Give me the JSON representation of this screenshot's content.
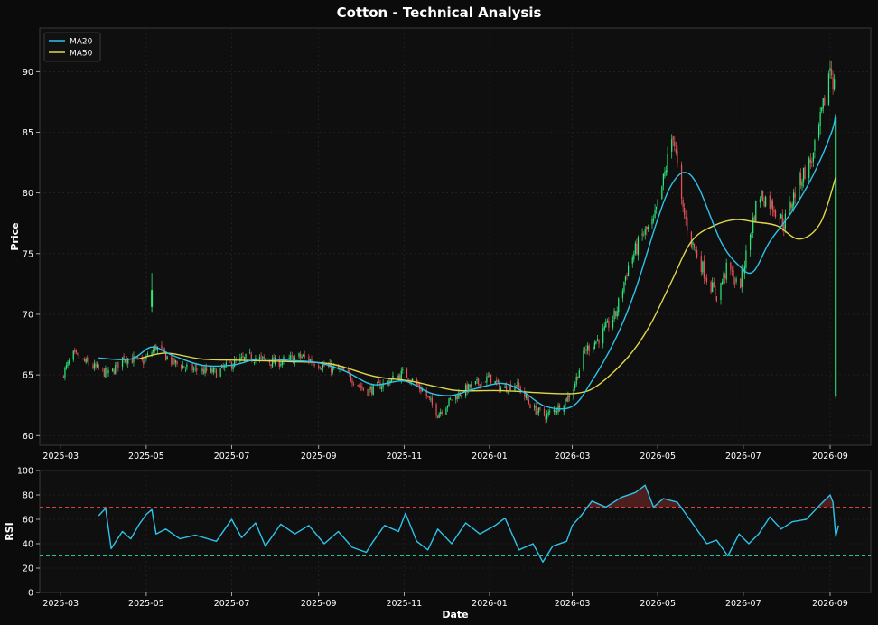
{
  "title": "Cotton - Technical Analysis",
  "colors": {
    "background": "#0b0b0b",
    "plot_bg": "#0f0f0f",
    "grid": "#2a2a2a",
    "up": "#2ee87a",
    "down": "#e8545a",
    "ma20": "#2ec3ea",
    "ma50": "#e0d84a",
    "rsi": "#2ec3ea",
    "overbought": "#d9433f",
    "oversold": "#26c2a0",
    "text": "#ffffff"
  },
  "chart_data": [
    {
      "type": "candlestick",
      "ylabel": "Price",
      "xlabel": "",
      "ylim": [
        59.2,
        93.6
      ],
      "yticks": [
        60,
        65,
        70,
        75,
        80,
        85,
        90
      ],
      "xlim": [
        "2025-02-14",
        "2026-09-30"
      ],
      "xticks": [
        "2025-03",
        "2025-05",
        "2025-07",
        "2025-09",
        "2025-11",
        "2026-01",
        "2026-03",
        "2026-05",
        "2026-07",
        "2026-09"
      ],
      "grid": true,
      "legend": {
        "position": "top-left",
        "entries": [
          "MA20",
          "MA50"
        ]
      },
      "close_anchors": [
        [
          "2025-03-01",
          64.8
        ],
        [
          "2025-03-10",
          66.6
        ],
        [
          "2025-03-25",
          65.6
        ],
        [
          "2025-04-05",
          65.0
        ],
        [
          "2025-04-15",
          66.5
        ],
        [
          "2025-04-28",
          66.0
        ],
        [
          "2025-05-08",
          67.3
        ],
        [
          "2025-05-20",
          66.0
        ],
        [
          "2025-06-05",
          65.4
        ],
        [
          "2025-06-20",
          65.2
        ],
        [
          "2025-07-01",
          65.9
        ],
        [
          "2025-07-15",
          66.5
        ],
        [
          "2025-08-01",
          66.0
        ],
        [
          "2025-08-20",
          66.5
        ],
        [
          "2025-09-05",
          65.7
        ],
        [
          "2025-09-20",
          65.2
        ],
        [
          "2025-10-05",
          63.6
        ],
        [
          "2025-10-20",
          64.4
        ],
        [
          "2025-11-01",
          65.2
        ],
        [
          "2025-11-15",
          63.6
        ],
        [
          "2025-11-25",
          61.8
        ],
        [
          "2025-12-05",
          63.0
        ],
        [
          "2025-12-15",
          63.8
        ],
        [
          "2026-01-01",
          64.8
        ],
        [
          "2026-01-10",
          63.8
        ],
        [
          "2026-01-20",
          64.3
        ],
        [
          "2026-02-01",
          62.2
        ],
        [
          "2026-02-10",
          61.6
        ],
        [
          "2026-02-20",
          62.4
        ],
        [
          "2026-03-01",
          63.6
        ],
        [
          "2026-03-10",
          67.0
        ],
        [
          "2026-03-20",
          68.0
        ],
        [
          "2026-04-01",
          70.0
        ],
        [
          "2026-04-10",
          74.0
        ],
        [
          "2026-04-20",
          76.5
        ],
        [
          "2026-04-28",
          77.5
        ],
        [
          "2026-05-05",
          81.0
        ],
        [
          "2026-05-12",
          85.0
        ],
        [
          "2026-05-18",
          79.0
        ],
        [
          "2026-05-25",
          76.0
        ],
        [
          "2026-06-05",
          73.0
        ],
        [
          "2026-06-12",
          71.5
        ],
        [
          "2026-06-20",
          74.0
        ],
        [
          "2026-06-28",
          72.0
        ],
        [
          "2026-07-05",
          76.0
        ],
        [
          "2026-07-12",
          80.0
        ],
        [
          "2026-07-22",
          79.0
        ],
        [
          "2026-07-30",
          77.5
        ],
        [
          "2026-08-10",
          81.0
        ],
        [
          "2026-08-20",
          83.0
        ],
        [
          "2026-08-27",
          87.0
        ],
        [
          "2026-09-01",
          90.5
        ],
        [
          "2026-09-04",
          88.8
        ]
      ],
      "spike_candle": {
        "date": "2026-09-05",
        "open": 86.3,
        "high": 86.5,
        "low": 63.0,
        "close": 63.2
      },
      "outlier_candle": {
        "date": "2025-05-05",
        "open": 70.6,
        "high": 73.4,
        "low": 70.2,
        "close": 72.0
      },
      "ma20": [
        [
          "2025-03-28",
          66.4
        ],
        [
          "2025-04-20",
          66.3
        ],
        [
          "2025-05-05",
          67.3
        ],
        [
          "2025-05-20",
          66.6
        ],
        [
          "2025-06-10",
          65.8
        ],
        [
          "2025-07-01",
          65.8
        ],
        [
          "2025-07-20",
          66.3
        ],
        [
          "2025-08-10",
          66.2
        ],
        [
          "2025-09-01",
          66.0
        ],
        [
          "2025-09-20",
          65.3
        ],
        [
          "2025-10-10",
          64.2
        ],
        [
          "2025-11-01",
          64.5
        ],
        [
          "2025-11-20",
          63.5
        ],
        [
          "2025-12-05",
          63.3
        ],
        [
          "2025-12-20",
          63.8
        ],
        [
          "2026-01-10",
          64.3
        ],
        [
          "2026-01-25",
          63.6
        ],
        [
          "2026-02-10",
          62.4
        ],
        [
          "2026-03-01",
          62.4
        ],
        [
          "2026-03-15",
          64.5
        ],
        [
          "2026-04-01",
          68.0
        ],
        [
          "2026-04-15",
          72.0
        ],
        [
          "2026-04-30",
          77.5
        ],
        [
          "2026-05-10",
          80.5
        ],
        [
          "2026-05-20",
          81.7
        ],
        [
          "2026-05-30",
          80.5
        ],
        [
          "2026-06-15",
          76.0
        ],
        [
          "2026-06-28",
          74.0
        ],
        [
          "2026-07-08",
          73.5
        ],
        [
          "2026-07-20",
          76.0
        ],
        [
          "2026-08-05",
          78.5
        ],
        [
          "2026-08-20",
          81.5
        ],
        [
          "2026-09-02",
          85.0
        ],
        [
          "2026-09-05",
          86.5
        ]
      ],
      "ma50": [
        [
          "2025-04-25",
          66.3
        ],
        [
          "2025-05-15",
          66.8
        ],
        [
          "2025-06-10",
          66.3
        ],
        [
          "2025-07-10",
          66.2
        ],
        [
          "2025-08-10",
          66.1
        ],
        [
          "2025-09-10",
          65.9
        ],
        [
          "2025-10-10",
          64.9
        ],
        [
          "2025-11-05",
          64.5
        ],
        [
          "2025-11-25",
          64.0
        ],
        [
          "2025-12-10",
          63.7
        ],
        [
          "2026-01-10",
          63.7
        ],
        [
          "2026-02-10",
          63.5
        ],
        [
          "2026-03-05",
          63.5
        ],
        [
          "2026-03-20",
          64.2
        ],
        [
          "2026-04-10",
          66.5
        ],
        [
          "2026-04-25",
          69.0
        ],
        [
          "2026-05-10",
          72.5
        ],
        [
          "2026-05-25",
          76.0
        ],
        [
          "2026-06-10",
          77.3
        ],
        [
          "2026-06-25",
          77.8
        ],
        [
          "2026-07-10",
          77.6
        ],
        [
          "2026-07-25",
          77.3
        ],
        [
          "2026-08-10",
          76.2
        ],
        [
          "2026-08-25",
          77.5
        ],
        [
          "2026-09-05",
          81.3
        ]
      ]
    },
    {
      "type": "line",
      "ylabel": "RSI",
      "xlabel": "Date",
      "ylim": [
        0,
        100
      ],
      "yticks": [
        0,
        20,
        40,
        60,
        80,
        100
      ],
      "xlim": [
        "2025-02-14",
        "2026-09-30"
      ],
      "xticks": [
        "2025-03",
        "2025-05",
        "2025-07",
        "2025-09",
        "2025-11",
        "2026-01",
        "2026-03",
        "2026-05",
        "2026-07",
        "2026-09"
      ],
      "overbought": 70,
      "oversold": 30,
      "grid": true,
      "rsi": [
        [
          "2025-03-28",
          63
        ],
        [
          "2025-04-02",
          69
        ],
        [
          "2025-04-06",
          36
        ],
        [
          "2025-04-14",
          50
        ],
        [
          "2025-04-20",
          44
        ],
        [
          "2025-04-26",
          56
        ],
        [
          "2025-05-01",
          64
        ],
        [
          "2025-05-05",
          68
        ],
        [
          "2025-05-08",
          48
        ],
        [
          "2025-05-15",
          52
        ],
        [
          "2025-05-25",
          44
        ],
        [
          "2025-06-05",
          47
        ],
        [
          "2025-06-20",
          42
        ],
        [
          "2025-07-01",
          60
        ],
        [
          "2025-07-08",
          45
        ],
        [
          "2025-07-18",
          57
        ],
        [
          "2025-07-25",
          38
        ],
        [
          "2025-08-05",
          56
        ],
        [
          "2025-08-15",
          48
        ],
        [
          "2025-08-25",
          55
        ],
        [
          "2025-09-05",
          40
        ],
        [
          "2025-09-15",
          50
        ],
        [
          "2025-09-25",
          37
        ],
        [
          "2025-10-05",
          33
        ],
        [
          "2025-10-10",
          42
        ],
        [
          "2025-10-18",
          55
        ],
        [
          "2025-10-28",
          50
        ],
        [
          "2025-11-02",
          65
        ],
        [
          "2025-11-10",
          42
        ],
        [
          "2025-11-18",
          35
        ],
        [
          "2025-11-25",
          52
        ],
        [
          "2025-12-05",
          40
        ],
        [
          "2025-12-15",
          57
        ],
        [
          "2025-12-25",
          48
        ],
        [
          "2026-01-05",
          55
        ],
        [
          "2026-01-12",
          61
        ],
        [
          "2026-01-22",
          35
        ],
        [
          "2026-02-01",
          40
        ],
        [
          "2026-02-08",
          25
        ],
        [
          "2026-02-15",
          38
        ],
        [
          "2026-02-25",
          42
        ],
        [
          "2026-03-01",
          55
        ],
        [
          "2026-03-08",
          64
        ],
        [
          "2026-03-15",
          75
        ],
        [
          "2026-03-25",
          70
        ],
        [
          "2026-04-05",
          78
        ],
        [
          "2026-04-15",
          82
        ],
        [
          "2026-04-22",
          88
        ],
        [
          "2026-04-28",
          70
        ],
        [
          "2026-05-05",
          77
        ],
        [
          "2026-05-15",
          74
        ],
        [
          "2026-05-25",
          58
        ],
        [
          "2026-06-05",
          40
        ],
        [
          "2026-06-12",
          43
        ],
        [
          "2026-06-20",
          30
        ],
        [
          "2026-06-28",
          48
        ],
        [
          "2026-07-05",
          40
        ],
        [
          "2026-07-12",
          48
        ],
        [
          "2026-07-20",
          62
        ],
        [
          "2026-07-28",
          52
        ],
        [
          "2026-08-05",
          58
        ],
        [
          "2026-08-15",
          60
        ],
        [
          "2026-08-25",
          72
        ],
        [
          "2026-09-01",
          80
        ],
        [
          "2026-09-03",
          74
        ],
        [
          "2026-09-05",
          46
        ],
        [
          "2026-09-07",
          55
        ]
      ]
    }
  ]
}
